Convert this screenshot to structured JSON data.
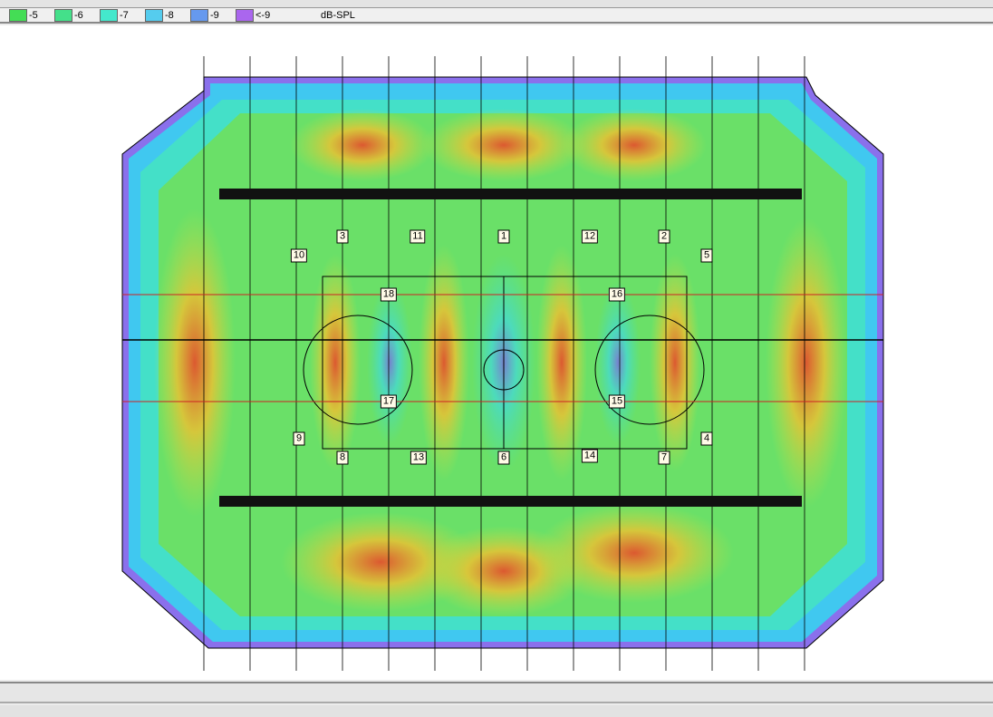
{
  "legend": {
    "items": [
      {
        "label": "-5",
        "color": "#44dd55"
      },
      {
        "label": "-6",
        "color": "#44e08a"
      },
      {
        "label": "-7",
        "color": "#44e8cc"
      },
      {
        "label": "-8",
        "color": "#55ccee"
      },
      {
        "label": "-9",
        "color": "#6699ee"
      },
      {
        "label": "<-9",
        "color": "#aa66ee"
      }
    ],
    "unit": "dB-SPL"
  },
  "speakers": [
    "1",
    "2",
    "3",
    "4",
    "5",
    "6",
    "7",
    "8",
    "9",
    "10",
    "11",
    "12",
    "13",
    "14",
    "15",
    "16",
    "17",
    "18"
  ]
}
